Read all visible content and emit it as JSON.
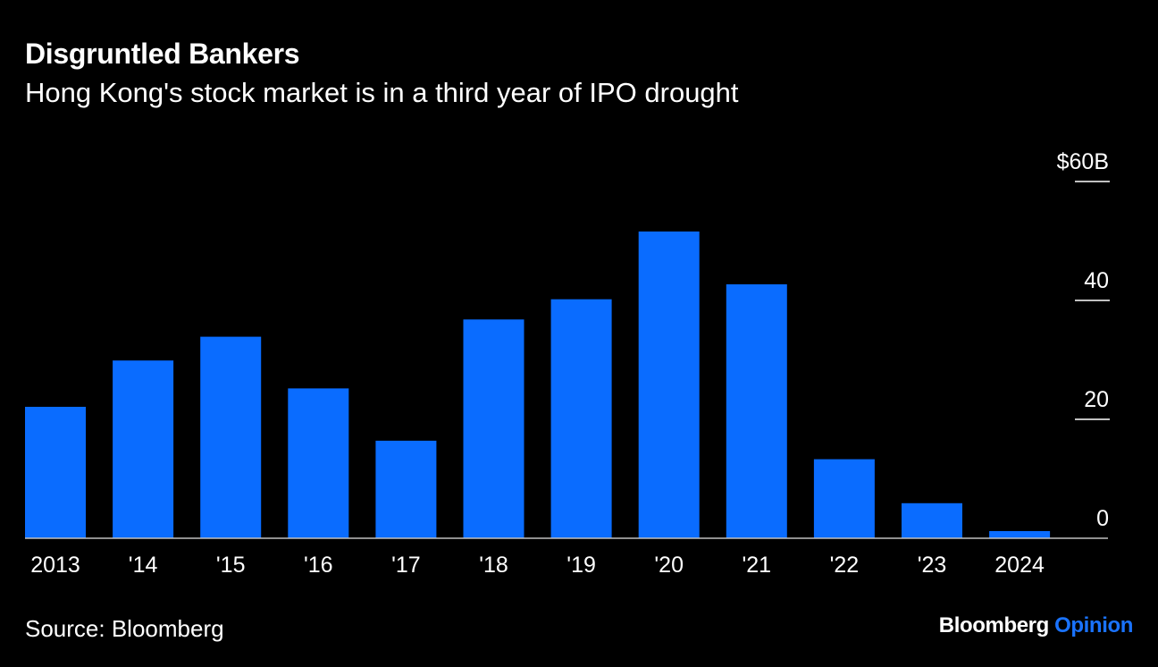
{
  "header": {
    "title": "Disgruntled Bankers",
    "subtitle": "Hong Kong's stock market is in a third year of IPO drought"
  },
  "footer": {
    "source": "Source: Bloomberg",
    "brand_main": "Bloomberg",
    "brand_accent": "Opinion"
  },
  "colors": {
    "background": "#000000",
    "bar": "#0a6cff",
    "text": "#ffffff",
    "accent": "#1a73ff"
  },
  "chart_data": {
    "type": "bar",
    "title": "Disgruntled Bankers",
    "subtitle": "Hong Kong's stock market is in a third year of IPO drought",
    "xlabel": "",
    "ylabel": "",
    "categories": [
      "2013",
      "'14",
      "'15",
      "'16",
      "'17",
      "'18",
      "'19",
      "'20",
      "'21",
      "'22",
      "'23",
      "2024"
    ],
    "values": [
      22.1,
      29.9,
      33.9,
      25.2,
      16.4,
      36.8,
      40.2,
      51.6,
      42.7,
      13.3,
      5.9,
      1.2
    ],
    "ylim": [
      0,
      60
    ],
    "yticks": [
      0,
      20,
      40,
      60
    ],
    "ytick_labels": [
      "0",
      "20",
      "40",
      "$60B"
    ],
    "y_axis_side": "right",
    "grid": false,
    "source": "Bloomberg"
  }
}
